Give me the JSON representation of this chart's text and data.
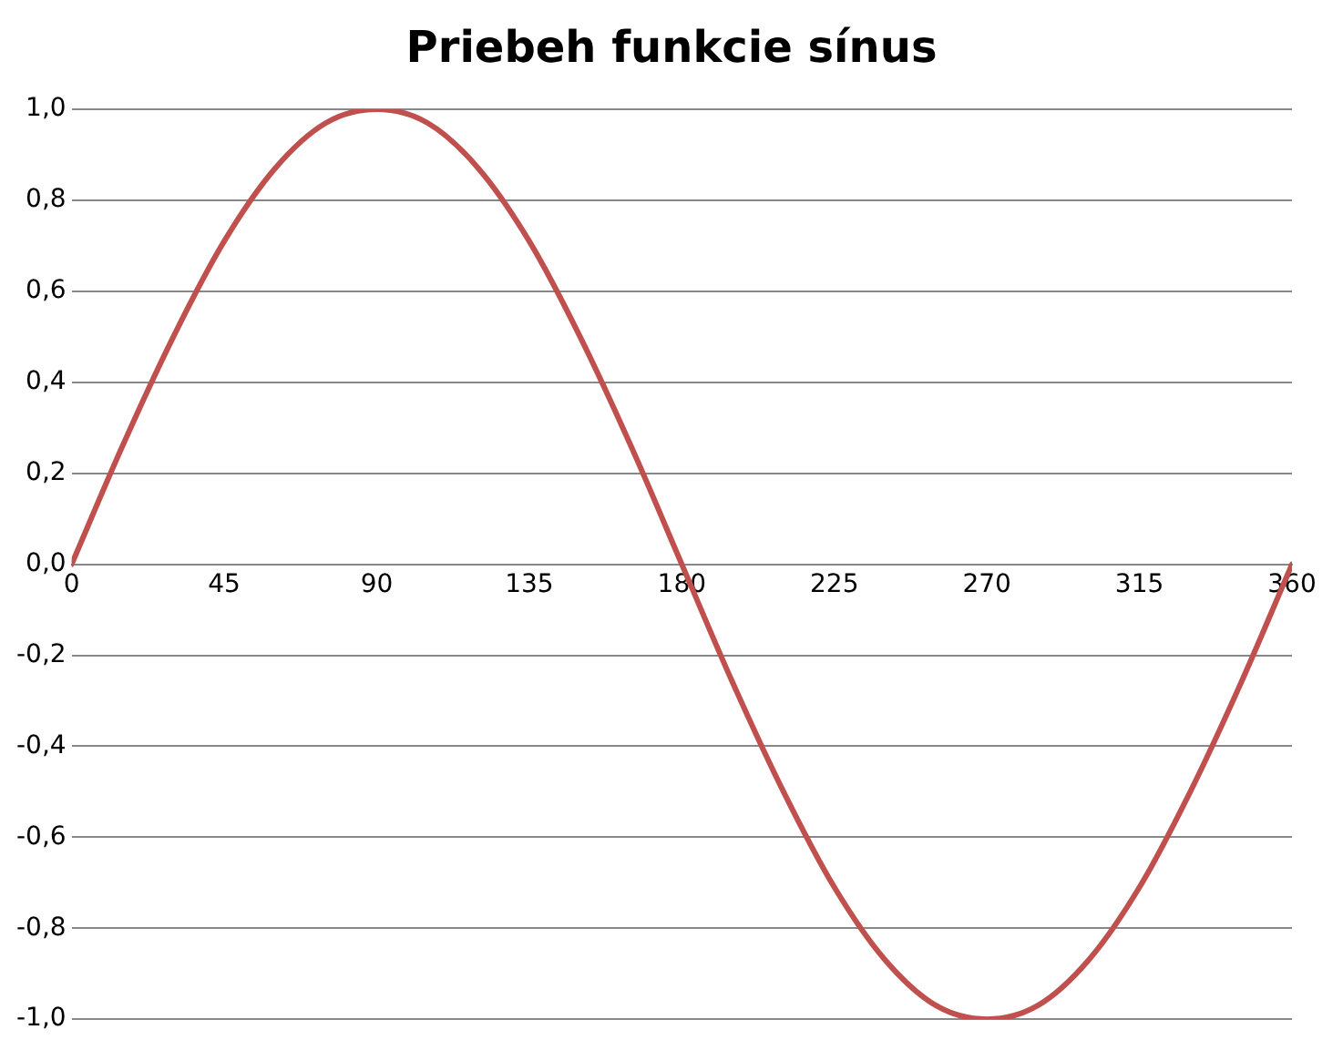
{
  "chart_data": {
    "type": "line",
    "title": "Priebeh funkcie sínus",
    "x": [
      0,
      15,
      30,
      45,
      60,
      75,
      90,
      105,
      120,
      135,
      150,
      165,
      180,
      195,
      210,
      225,
      240,
      255,
      270,
      285,
      300,
      315,
      330,
      345,
      360
    ],
    "series": [
      {
        "color": "#c0504d",
        "values": [
          0,
          0.26,
          0.5,
          0.71,
          0.87,
          0.97,
          1,
          0.97,
          0.87,
          0.71,
          0.5,
          0.26,
          0,
          -0.26,
          -0.5,
          -0.71,
          -0.87,
          -0.97,
          -1,
          -0.97,
          -0.87,
          -0.71,
          -0.5,
          -0.26,
          0
        ]
      }
    ],
    "xlim": [
      0,
      360
    ],
    "xticks": [
      0,
      45,
      90,
      135,
      180,
      225,
      270,
      315,
      360
    ],
    "ylim": [
      -1,
      1
    ],
    "yticks": [
      {
        "value": -1,
        "label": "-1,0"
      },
      {
        "value": -0.8,
        "label": "-0,8"
      },
      {
        "value": -0.6,
        "label": "-0,6"
      },
      {
        "value": -0.4,
        "label": "-0,4"
      },
      {
        "value": -0.2,
        "label": "-0,2"
      },
      {
        "value": 0,
        "label": "0,0"
      },
      {
        "value": 0.2,
        "label": "0,2"
      },
      {
        "value": 0.4,
        "label": "0,4"
      },
      {
        "value": 0.6,
        "label": "0,6"
      },
      {
        "value": 0.8,
        "label": "0,8"
      },
      {
        "value": 1,
        "label": "1,0"
      }
    ],
    "grid": "y",
    "marker": "none",
    "line_style": "solid",
    "legend": false
  }
}
